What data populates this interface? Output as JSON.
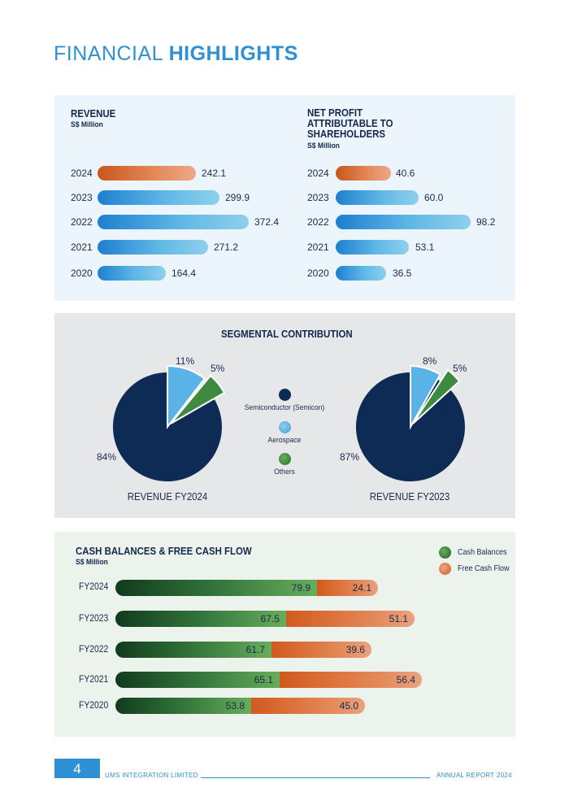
{
  "title": {
    "light": "FINANCIAL",
    "bold": "HIGHLIGHTS"
  },
  "revenue": {
    "title": "REVENUE",
    "unit": "S$ Million",
    "rows": [
      {
        "year": "2024",
        "value": "242.1"
      },
      {
        "year": "2023",
        "value": "299.9"
      },
      {
        "year": "2022",
        "value": "372.4"
      },
      {
        "year": "2021",
        "value": "271.2"
      },
      {
        "year": "2020",
        "value": "164.4"
      }
    ]
  },
  "net_profit": {
    "title_lines": [
      "NET PROFIT",
      "ATTRIBUTABLE TO",
      "SHAREHOLDERS"
    ],
    "unit": "S$ Million",
    "rows": [
      {
        "year": "2024",
        "value": "40.6"
      },
      {
        "year": "2023",
        "value": "60.0"
      },
      {
        "year": "2022",
        "value": "98.2"
      },
      {
        "year": "2021",
        "value": "53.1"
      },
      {
        "year": "2020",
        "value": "36.5"
      }
    ]
  },
  "segmental": {
    "title": "SEGMENTAL CONTRIBUTION",
    "legend": [
      "Semiconductor (Semicon)",
      "Aerospace",
      "Others"
    ],
    "pies": [
      {
        "caption": "REVENUE FY2024",
        "semicon": "84%",
        "aero": "11%",
        "others": "5%"
      },
      {
        "caption": "REVENUE FY2023",
        "semicon": "87%",
        "aero": "8%",
        "others": "5%"
      }
    ]
  },
  "cash": {
    "title": "CASH BALANCES & FREE CASH FLOW",
    "unit": "S$ Million",
    "legend": [
      "Cash Balances",
      "Free Cash Flow"
    ],
    "rows": [
      {
        "year": "FY2024",
        "cash": "79.9",
        "fcf": "24.1"
      },
      {
        "year": "FY2023",
        "cash": "67.5",
        "fcf": "51.1"
      },
      {
        "year": "FY2022",
        "cash": "61.7",
        "fcf": "39.6"
      },
      {
        "year": "FY2021",
        "cash": "65.1",
        "fcf": "56.4"
      },
      {
        "year": "FY2020",
        "cash": "53.8",
        "fcf": "45.0"
      }
    ]
  },
  "footer": {
    "page": "4",
    "company": "UMS INTEGRATION LIMITED",
    "report": "ANNUAL REPORT 2024"
  },
  "colors": {
    "accent": "#2f90d4",
    "navy": "#0e2b55",
    "aero": "#5ab3e6",
    "others": "#2f7a36",
    "orange": "#d9682d"
  }
}
